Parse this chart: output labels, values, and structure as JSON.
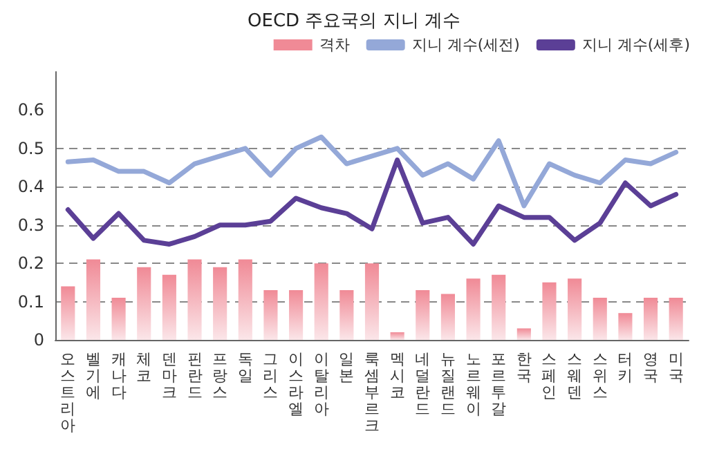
{
  "chart_data": {
    "type": "bar",
    "title": "OECD 주요국의 지니 계수",
    "categories": [
      "오스트리아",
      "벨기에",
      "캐나다",
      "체코",
      "덴마크",
      "핀란드",
      "프랑스",
      "독일",
      "그리스",
      "이스라엘",
      "이탈리아",
      "일본",
      "룩셈부르크",
      "멕시코",
      "네덜란드",
      "뉴질랜드",
      "노르웨이",
      "포르투갈",
      "한국",
      "스페인",
      "스웨덴",
      "스위스",
      "터키",
      "영국",
      "미국"
    ],
    "series": [
      {
        "name": "격차",
        "color": "#f08a96",
        "values": [
          0.14,
          0.21,
          0.11,
          0.19,
          0.17,
          0.21,
          0.19,
          0.21,
          0.13,
          0.13,
          0.2,
          0.13,
          0.2,
          0.02,
          0.13,
          0.12,
          0.16,
          0.17,
          0.03,
          0.15,
          0.16,
          0.11,
          0.07,
          0.11,
          0.11
        ]
      },
      {
        "name": "지니 계수(세전)",
        "type": "line",
        "color": "#94a8d8",
        "values": [
          0.465,
          0.47,
          0.44,
          0.44,
          0.41,
          0.46,
          0.48,
          0.5,
          0.43,
          0.5,
          0.53,
          0.46,
          0.48,
          0.5,
          0.43,
          0.46,
          0.42,
          0.52,
          0.35,
          0.46,
          0.43,
          0.41,
          0.47,
          0.46,
          0.49
        ]
      },
      {
        "name": "지니 계수(세후)",
        "type": "line",
        "color": "#5b3f96",
        "values": [
          0.34,
          0.265,
          0.33,
          0.26,
          0.25,
          0.27,
          0.3,
          0.3,
          0.31,
          0.37,
          0.345,
          0.33,
          0.29,
          0.47,
          0.305,
          0.32,
          0.25,
          0.35,
          0.32,
          0.32,
          0.26,
          0.305,
          0.41,
          0.35,
          0.38
        ]
      }
    ],
    "ylim": [
      0,
      0.7
    ],
    "yticks": [
      0,
      0.1,
      0.2,
      0.3,
      0.4,
      0.5,
      0.6
    ],
    "grid": "y",
    "legend": "top right",
    "marker": "none",
    "line_style": "solid"
  }
}
